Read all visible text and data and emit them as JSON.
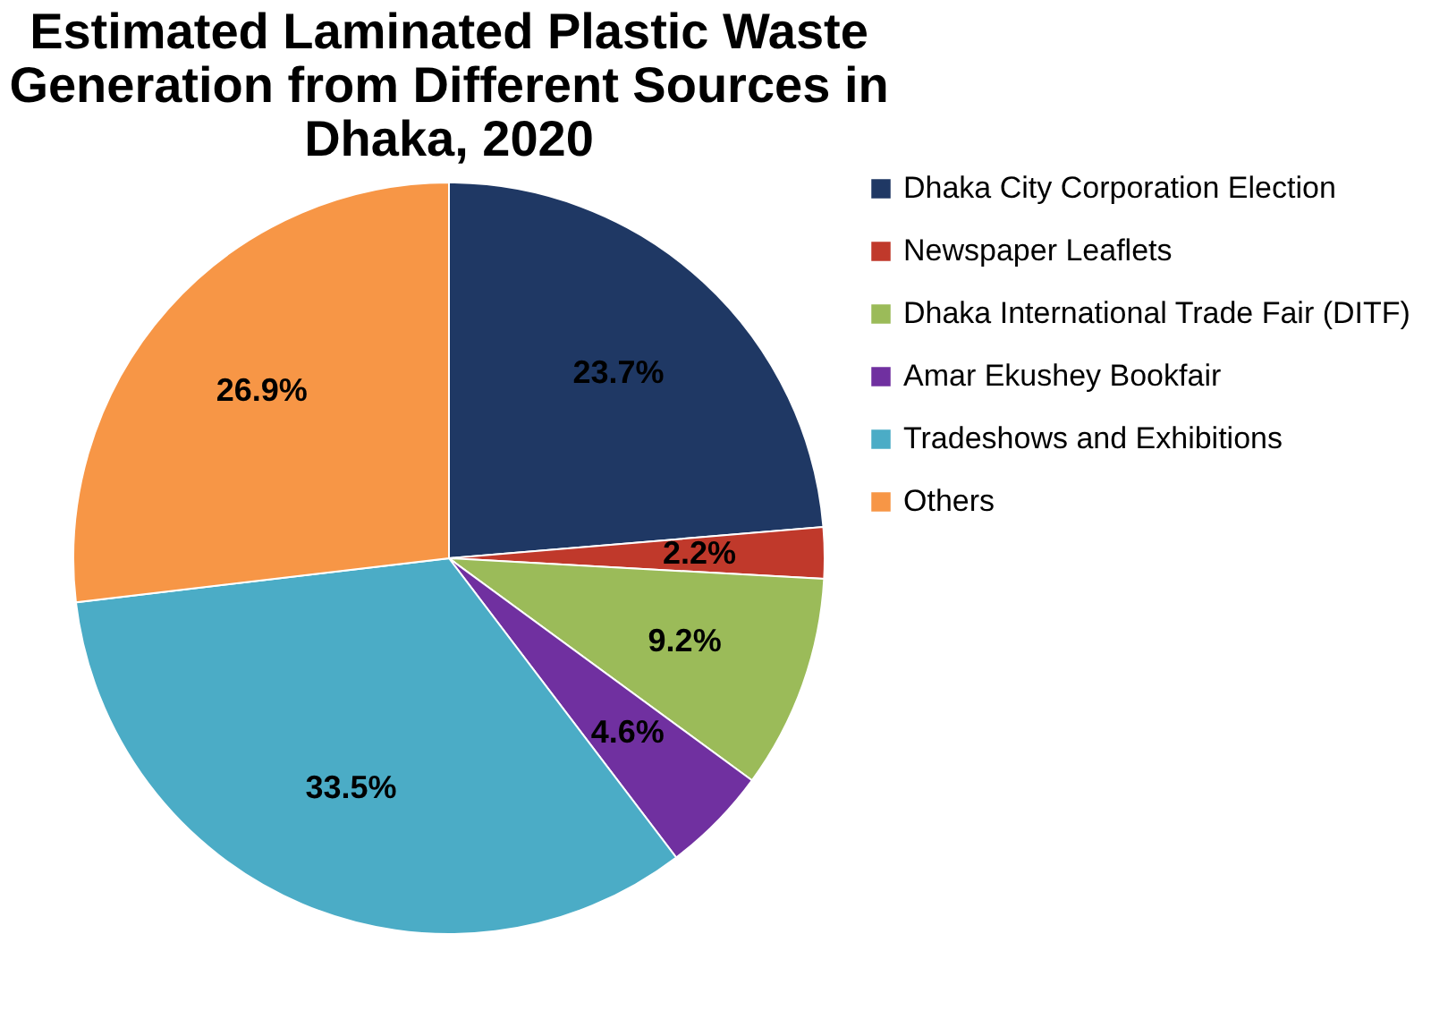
{
  "chart_data": {
    "type": "pie",
    "title": "Estimated Laminated Plastic Waste Generation from Different Sources in Dhaka, 2020",
    "categories": [
      "Dhaka City Corporation Election",
      "Newspaper Leaflets",
      "Dhaka International Trade Fair (DITF)",
      "Amar Ekushey Bookfair",
      "Tradeshows and Exhibitions",
      "Others"
    ],
    "values": [
      23.7,
      2.2,
      9.2,
      4.6,
      33.5,
      26.9
    ],
    "colors": [
      "#1f3864",
      "#c0392b",
      "#9bbb59",
      "#7030a0",
      "#4bacc6",
      "#f79646"
    ],
    "value_labels": [
      "23.7%",
      "2.2%",
      "9.2%",
      "4.6%",
      "33.5%",
      "26.9%"
    ],
    "legend": "right"
  }
}
